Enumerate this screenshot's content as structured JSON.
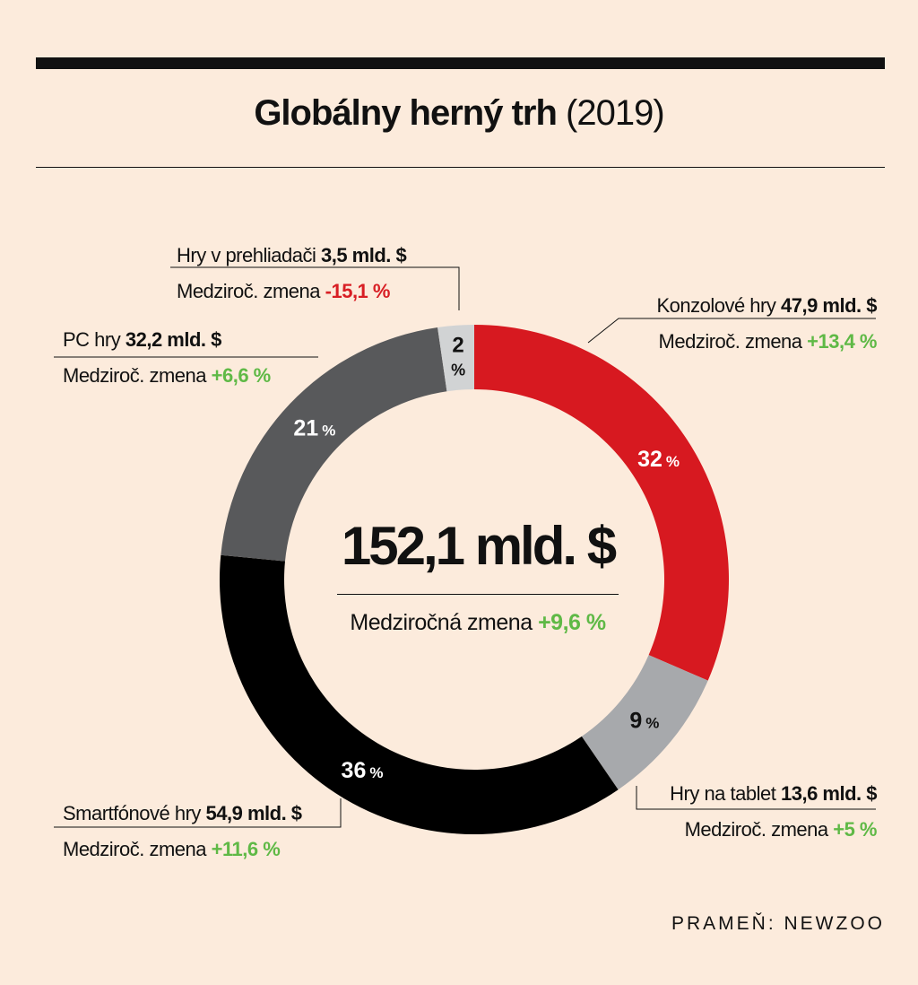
{
  "title": {
    "main": "Globálny herný trh",
    "year": "(2019)"
  },
  "center": {
    "total": "152,1 mld. $",
    "change_label": "Medziročná zmena",
    "change_value": "+9,6 %"
  },
  "source": "PRAMEŇ: NEWZOO",
  "colors": {
    "consoles": "#d71920",
    "tablets": "#a7a9ac",
    "smartphones": "#000000",
    "pc": "#58595b",
    "browser": "#d1d3d4",
    "positive": "#5fb946",
    "negative": "#d81e24"
  },
  "chart_data": {
    "type": "pie",
    "style": "donut",
    "title": "Globálny herný trh (2019)",
    "total": "152,1 mld. $",
    "slices": [
      {
        "name": "Konzolové hry",
        "value_text": "47,9 mld. $",
        "value": 47.9,
        "percent": 32,
        "percent_label": "32",
        "change_label": "Medziroč. zmena",
        "change": "+13,4 %",
        "color": "#d71920"
      },
      {
        "name": "Hry na tablet",
        "value_text": "13,6 mld. $",
        "value": 13.6,
        "percent": 9,
        "percent_label": "9",
        "change_label": "Medziroč. zmena",
        "change": "+5 %",
        "color": "#a7a9ac"
      },
      {
        "name": "Smartfónové hry",
        "value_text": "54,9 mld. $",
        "value": 54.9,
        "percent": 36,
        "percent_label": "36",
        "change_label": "Medziroč. zmena",
        "change": "+11,6 %",
        "color": "#000000"
      },
      {
        "name": "PC hry",
        "value_text": "32,2 mld. $",
        "value": 32.2,
        "percent": 21,
        "percent_label": "21",
        "change_label": "Medziroč. zmena",
        "change": "+6,6 %",
        "color": "#58595b"
      },
      {
        "name": "Hry v prehliadači",
        "value_text": "3,5 mld. $",
        "value": 3.5,
        "percent": 2,
        "percent_label": "2",
        "change_label": "Medziroč. zmena",
        "change": "-15,1 %",
        "color": "#d1d3d4"
      }
    ],
    "percent_sign": "%"
  }
}
